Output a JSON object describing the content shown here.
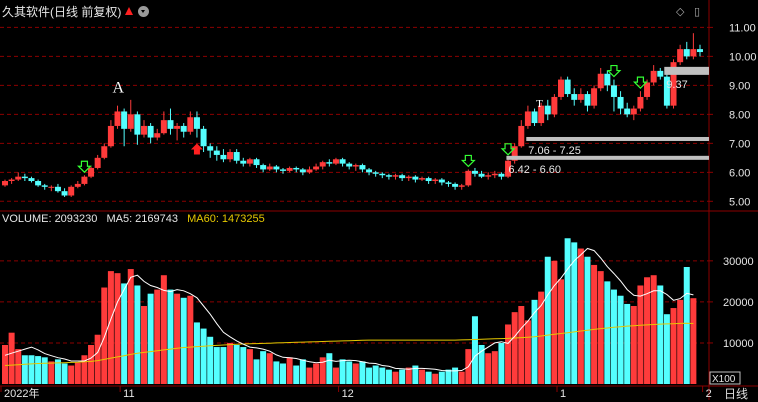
{
  "header": {
    "title": "久其软件(日线 前复权)"
  },
  "volume_header": {
    "volume_label": "VOLUME: 2093230",
    "ma5_label": "MA5: 2169743",
    "ma60_label": "MA60: 1473255"
  },
  "colors": {
    "up": "#ff3b3b",
    "down": "#54ffff",
    "grid": "#8b0000",
    "ma5": "#ffffff",
    "ma60": "#e6c800",
    "price_tag": "#c0c0c0"
  },
  "icons": {
    "diamond": "◇",
    "window": "▯"
  },
  "bottom": {
    "x100": "X100",
    "period_button": "日线"
  },
  "chart_data": [
    {
      "type": "candlestick",
      "ylim": [
        4.7,
        11.6
      ],
      "yticks": [
        "11.00",
        "10.00",
        "9.00",
        "8.00",
        "7.00",
        "6.00",
        "5.00"
      ],
      "xticks": [
        "2022年",
        "11",
        "12",
        "1",
        "2"
      ],
      "xtick_index": [
        0,
        18,
        51,
        84,
        106
      ],
      "candles": [
        [
          5.55,
          5.7,
          5.75,
          5.5
        ],
        [
          5.7,
          5.75,
          5.8,
          5.6
        ],
        [
          5.75,
          5.85,
          6.0,
          5.7
        ],
        [
          5.85,
          5.8,
          5.95,
          5.7
        ],
        [
          5.8,
          5.7,
          5.85,
          5.65
        ],
        [
          5.7,
          5.55,
          5.75,
          5.5
        ],
        [
          5.55,
          5.5,
          5.6,
          5.4
        ],
        [
          5.5,
          5.5,
          5.55,
          5.35
        ],
        [
          5.5,
          5.35,
          5.6,
          5.3
        ],
        [
          5.35,
          5.2,
          5.45,
          5.15
        ],
        [
          5.2,
          5.5,
          5.55,
          5.15
        ],
        [
          5.5,
          5.6,
          5.7,
          5.45
        ],
        [
          5.6,
          5.85,
          5.9,
          5.55
        ],
        [
          5.85,
          6.15,
          6.2,
          5.8
        ],
        [
          6.15,
          6.5,
          6.6,
          6.1
        ],
        [
          6.5,
          6.9,
          7.0,
          6.45
        ],
        [
          6.9,
          7.6,
          7.8,
          6.85
        ],
        [
          7.6,
          8.1,
          8.3,
          7.5
        ],
        [
          8.1,
          7.5,
          8.2,
          6.9
        ],
        [
          7.5,
          8.0,
          8.5,
          7.4
        ],
        [
          8.0,
          7.3,
          8.1,
          6.95
        ],
        [
          7.3,
          7.6,
          7.8,
          7.2
        ],
        [
          7.6,
          7.2,
          7.7,
          7.0
        ],
        [
          7.2,
          7.35,
          7.5,
          7.1
        ],
        [
          7.35,
          7.8,
          8.1,
          7.3
        ],
        [
          7.8,
          7.5,
          8.2,
          7.3
        ],
        [
          7.5,
          7.6,
          7.7,
          7.1
        ],
        [
          7.6,
          7.4,
          7.7,
          7.2
        ],
        [
          7.4,
          7.9,
          8.1,
          7.3
        ],
        [
          7.9,
          7.5,
          8.1,
          7.2
        ],
        [
          7.5,
          6.9,
          7.6,
          6.7
        ],
        [
          6.9,
          6.75,
          7.0,
          6.5
        ],
        [
          6.75,
          6.6,
          6.9,
          6.4
        ],
        [
          6.6,
          6.45,
          6.8,
          6.35
        ],
        [
          6.45,
          6.7,
          6.8,
          6.35
        ],
        [
          6.7,
          6.4,
          6.8,
          6.3
        ],
        [
          6.4,
          6.3,
          6.5,
          6.2
        ],
        [
          6.3,
          6.45,
          6.5,
          6.2
        ],
        [
          6.45,
          6.25,
          6.5,
          6.15
        ],
        [
          6.25,
          6.1,
          6.3,
          6.0
        ],
        [
          6.1,
          6.2,
          6.3,
          6.05
        ],
        [
          6.2,
          6.1,
          6.25,
          6.0
        ],
        [
          6.1,
          6.05,
          6.15,
          5.95
        ],
        [
          6.05,
          6.15,
          6.2,
          6.0
        ],
        [
          6.15,
          6.1,
          6.2,
          6.0
        ],
        [
          6.1,
          6.0,
          6.15,
          5.9
        ],
        [
          6.0,
          6.1,
          6.2,
          5.95
        ],
        [
          6.1,
          6.2,
          6.3,
          6.05
        ],
        [
          6.2,
          6.35,
          6.4,
          6.1
        ],
        [
          6.35,
          6.3,
          6.45,
          6.2
        ],
        [
          6.3,
          6.45,
          6.5,
          6.25
        ],
        [
          6.45,
          6.3,
          6.5,
          6.2
        ],
        [
          6.3,
          6.2,
          6.35,
          6.1
        ],
        [
          6.2,
          6.25,
          6.3,
          6.05
        ],
        [
          6.25,
          6.1,
          6.3,
          6.0
        ],
        [
          6.1,
          6.0,
          6.15,
          5.9
        ],
        [
          6.0,
          5.95,
          6.05,
          5.85
        ],
        [
          5.95,
          5.9,
          6.0,
          5.8
        ],
        [
          5.9,
          5.85,
          5.95,
          5.75
        ],
        [
          5.85,
          5.9,
          5.95,
          5.75
        ],
        [
          5.9,
          5.8,
          5.95,
          5.7
        ],
        [
          5.8,
          5.85,
          5.9,
          5.7
        ],
        [
          5.85,
          5.75,
          5.9,
          5.65
        ],
        [
          5.75,
          5.8,
          5.85,
          5.7
        ],
        [
          5.8,
          5.7,
          5.85,
          5.6
        ],
        [
          5.7,
          5.75,
          5.8,
          5.6
        ],
        [
          5.75,
          5.65,
          5.8,
          5.55
        ],
        [
          5.65,
          5.6,
          5.7,
          5.5
        ],
        [
          5.6,
          5.5,
          5.65,
          5.4
        ],
        [
          5.5,
          5.55,
          5.6,
          5.4
        ],
        [
          5.55,
          6.05,
          6.1,
          5.5
        ],
        [
          6.05,
          5.95,
          6.15,
          5.85
        ],
        [
          5.95,
          5.85,
          6.05,
          5.8
        ],
        [
          5.85,
          5.9,
          6.0,
          5.75
        ],
        [
          5.9,
          5.95,
          6.05,
          5.8
        ],
        [
          5.95,
          5.85,
          6.0,
          5.75
        ],
        [
          5.85,
          6.4,
          6.5,
          5.8
        ],
        [
          6.4,
          6.9,
          7.0,
          6.3
        ],
        [
          6.9,
          7.6,
          7.8,
          6.85
        ],
        [
          7.6,
          8.1,
          8.3,
          7.5
        ],
        [
          8.1,
          7.7,
          8.2,
          7.6
        ],
        [
          7.7,
          8.3,
          8.4,
          7.6
        ],
        [
          8.3,
          8.0,
          8.5,
          7.8
        ],
        [
          8.0,
          8.6,
          8.7,
          7.9
        ],
        [
          8.6,
          9.2,
          9.3,
          8.5
        ],
        [
          9.2,
          8.7,
          9.3,
          8.6
        ],
        [
          8.7,
          8.5,
          8.9,
          8.3
        ],
        [
          8.5,
          8.7,
          8.9,
          8.4
        ],
        [
          8.7,
          8.3,
          8.8,
          8.1
        ],
        [
          8.3,
          8.9,
          9.0,
          8.2
        ],
        [
          8.9,
          9.4,
          9.6,
          8.8
        ],
        [
          9.4,
          9.0,
          9.5,
          8.8
        ],
        [
          9.0,
          8.6,
          9.2,
          8.1
        ],
        [
          8.6,
          8.2,
          8.8,
          8.0
        ],
        [
          8.2,
          8.0,
          8.4,
          7.9
        ],
        [
          8.0,
          8.2,
          8.3,
          7.8
        ],
        [
          8.2,
          8.6,
          8.8,
          8.1
        ],
        [
          8.6,
          9.1,
          9.2,
          8.5
        ],
        [
          9.1,
          9.5,
          9.7,
          9.0
        ],
        [
          9.5,
          9.3,
          9.6,
          9.2
        ],
        [
          9.3,
          8.3,
          9.4,
          8.2
        ],
        [
          8.3,
          9.8,
          9.9,
          8.2
        ],
        [
          9.8,
          10.25,
          10.4,
          9.7
        ],
        [
          10.25,
          10.0,
          10.5,
          9.9
        ],
        [
          10.0,
          10.25,
          10.8,
          9.9
        ],
        [
          10.25,
          10.15,
          10.4,
          10.0
        ]
      ],
      "annotations": [
        {
          "text": "A",
          "index": 17,
          "price": 8.75
        },
        {
          "text": "T",
          "index": 81,
          "price": 8.25
        }
      ],
      "buy_markers": [
        12,
        70,
        76,
        92,
        96
      ],
      "sell_markers": [
        29
      ],
      "price_bands": [
        {
          "label": "7.06 - 7.25",
          "price": 7.15,
          "start_index": 78
        },
        {
          "label": "6.42 - 6.60",
          "price": 6.5,
          "start_index": 75
        }
      ],
      "last_price_tag": {
        "label": "9.37",
        "price": 9.5,
        "start_index": 99
      }
    },
    {
      "type": "bar",
      "title": "VOLUME",
      "ylim": [
        0,
        38000
      ],
      "yticks": [
        "30000",
        "20000",
        "10000"
      ],
      "yticks_values": [
        30000,
        20000,
        10000
      ],
      "volumes": [
        9500,
        12500,
        8500,
        7000,
        7000,
        6800,
        6500,
        5500,
        6000,
        5000,
        4500,
        5200,
        7000,
        9500,
        12000,
        23500,
        27500,
        27000,
        24500,
        28000,
        24000,
        19000,
        22000,
        23000,
        26500,
        23000,
        22000,
        21000,
        21500,
        15000,
        13500,
        11500,
        9000,
        9000,
        10000,
        9500,
        9000,
        8500,
        6000,
        8000,
        7500,
        5500,
        5000,
        6500,
        4500,
        6000,
        4000,
        5000,
        6500,
        7500,
        4000,
        6000,
        5500,
        5000,
        5500,
        4000,
        4500,
        4000,
        3500,
        3000,
        3500,
        4000,
        4500,
        3500,
        3000,
        2500,
        3000,
        3500,
        4000,
        3000,
        8500,
        16500,
        9500,
        7500,
        8000,
        10000,
        14500,
        17500,
        19000,
        15500,
        20500,
        22500,
        31000,
        30000,
        25500,
        35500,
        34500,
        33000,
        31000,
        29000,
        27500,
        25000,
        23000,
        21500,
        19500,
        19000,
        24000,
        26000,
        26500,
        24000,
        17000,
        18500,
        20500,
        28500,
        20900
      ],
      "ma5": [
        7000,
        7500,
        8000,
        8500,
        9000,
        8300,
        7400,
        6900,
        6400,
        6100,
        5600,
        5600,
        5600,
        6300,
        7700,
        11400,
        15800,
        20000,
        23000,
        26000,
        26500,
        25000,
        24000,
        23500,
        22800,
        22500,
        23000,
        22700,
        22000,
        21000,
        19000,
        17000,
        14700,
        12600,
        11500,
        10500,
        9700,
        9000,
        8800,
        8500,
        8000,
        7100,
        6500,
        6400,
        6200,
        5800,
        5400,
        5200,
        5300,
        5800,
        5500,
        5700,
        5800,
        5700,
        5400,
        5100,
        5000,
        4500,
        4300,
        3800,
        3700,
        3600,
        3800,
        3800,
        3700,
        3600,
        3300,
        3200,
        3200,
        3300,
        4200,
        6800,
        8000,
        9000,
        10000,
        10300,
        9900,
        11600,
        13600,
        15300,
        17400,
        19100,
        21700,
        24000,
        25800,
        28000,
        30000,
        31500,
        33000,
        32500,
        30700,
        28600,
        26900,
        25100,
        23000,
        21600,
        21400,
        22000,
        22700,
        22700,
        21800,
        20400,
        20800,
        22100,
        21700
      ],
      "ma60": [
        4500,
        4600,
        4700,
        4800,
        4900,
        5000,
        5050,
        5100,
        5150,
        5200,
        5250,
        5300,
        5400,
        5500,
        5700,
        6000,
        6300,
        6600,
        6900,
        7200,
        7500,
        7700,
        7900,
        8100,
        8300,
        8500,
        8700,
        8900,
        9000,
        9100,
        9200,
        9300,
        9400,
        9500,
        9600,
        9700,
        9750,
        9800,
        9850,
        9900,
        9950,
        10000,
        10050,
        10100,
        10150,
        10200,
        10250,
        10300,
        10350,
        10400,
        10450,
        10500,
        10550,
        10600,
        10650,
        10700,
        10700,
        10700,
        10700,
        10700,
        10700,
        10700,
        10700,
        10700,
        10700,
        10700,
        10700,
        10700,
        10700,
        10750,
        10800,
        10850,
        10900,
        10950,
        11000,
        11050,
        11100,
        11200,
        11300,
        11400,
        11500,
        11700,
        11900,
        12100,
        12300,
        12500,
        12700,
        12900,
        13100,
        13300,
        13500,
        13650,
        13800,
        13950,
        14100,
        14200,
        14300,
        14400,
        14500,
        14600,
        14650,
        14700,
        14750,
        14800,
        14732
      ]
    }
  ]
}
